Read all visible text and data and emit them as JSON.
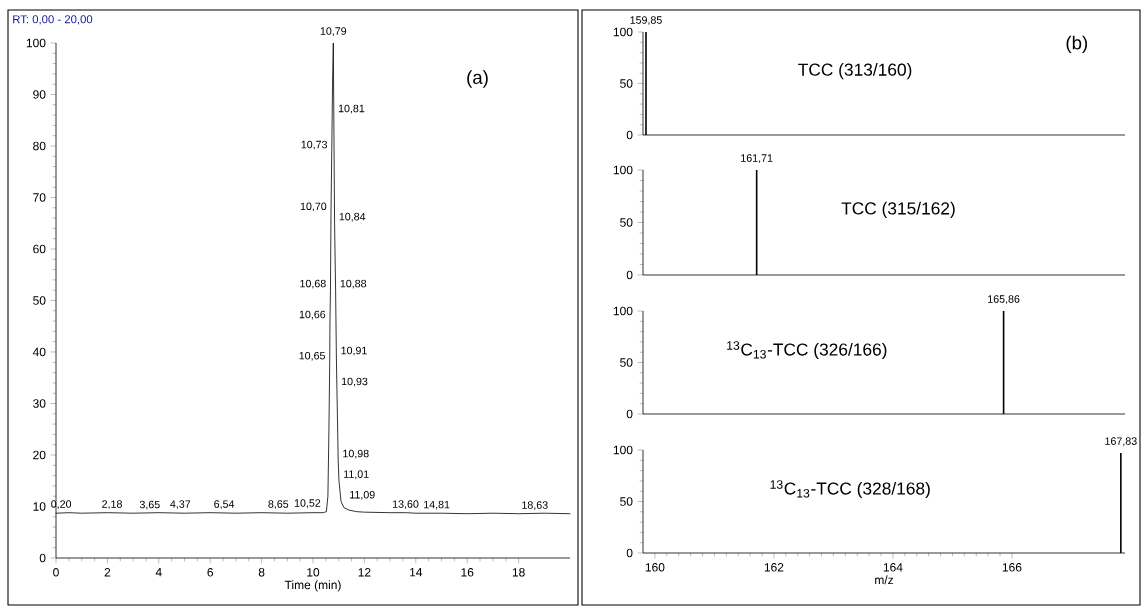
{
  "chart_data": [
    {
      "type": "line",
      "xlabel": "Time (min)",
      "xlim": [
        0,
        20
      ],
      "ylim": [
        0,
        100
      ],
      "xticks": [
        0,
        2,
        4,
        6,
        8,
        10,
        12,
        14,
        16,
        18
      ],
      "yticks": [
        0,
        10,
        20,
        30,
        40,
        50,
        60,
        70,
        80,
        90,
        100
      ],
      "series": [
        {
          "color": "#000000",
          "x": [
            0,
            0.5,
            1,
            2,
            3,
            4,
            5,
            6,
            7,
            8,
            9,
            10,
            10.4,
            10.52,
            10.58,
            10.62,
            10.65,
            10.66,
            10.68,
            10.7,
            10.73,
            10.76,
            10.79,
            10.81,
            10.84,
            10.88,
            10.91,
            10.93,
            10.98,
            11.01,
            11.09,
            11.2,
            11.4,
            11.7,
            12,
            13,
            13.6,
            14,
            15,
            16,
            17,
            18,
            19,
            20
          ],
          "values": [
            8.7,
            8.8,
            8.7,
            8.8,
            8.7,
            8.8,
            8.7,
            8.8,
            8.7,
            8.8,
            8.7,
            8.8,
            8.8,
            9.0,
            12,
            25,
            38,
            46,
            52,
            67,
            79,
            92,
            100,
            86,
            65,
            52,
            39,
            33,
            19,
            15,
            11,
            9.8,
            9.3,
            9.0,
            8.9,
            8.8,
            8.8,
            8.7,
            8.7,
            8.6,
            8.7,
            8.6,
            8.7,
            8.6
          ]
        }
      ],
      "annotations": [
        "RT: 0,00 - 20,00",
        "(a)",
        {
          "text": "0,20",
          "x": 0.2,
          "y": 8.8
        },
        {
          "text": "2,18",
          "x": 2.18,
          "y": 8.8
        },
        {
          "text": "3,65",
          "x": 3.65,
          "y": 8.7
        },
        {
          "text": "4,37",
          "x": 4.37,
          "y": 8.8
        },
        {
          "text": "6,54",
          "x": 6.54,
          "y": 8.8
        },
        {
          "text": "8,65",
          "x": 8.65,
          "y": 8.8
        },
        {
          "text": "10,52",
          "x": 10.52,
          "y": 9.0
        },
        {
          "text": "10,65",
          "x": 10.65,
          "y": 38
        },
        {
          "text": "10,66",
          "x": 10.66,
          "y": 46
        },
        {
          "text": "10,68",
          "x": 10.68,
          "y": 52
        },
        {
          "text": "10,70",
          "x": 10.7,
          "y": 67
        },
        {
          "text": "10,73",
          "x": 10.73,
          "y": 79
        },
        {
          "text": "10,79",
          "x": 10.79,
          "y": 100
        },
        {
          "text": "10,81",
          "x": 10.81,
          "y": 86
        },
        {
          "text": "10,84",
          "x": 10.84,
          "y": 65
        },
        {
          "text": "10,88",
          "x": 10.88,
          "y": 52
        },
        {
          "text": "10,91",
          "x": 10.91,
          "y": 39
        },
        {
          "text": "10,93",
          "x": 10.93,
          "y": 33
        },
        {
          "text": "10,98",
          "x": 10.98,
          "y": 19
        },
        {
          "text": "11,01",
          "x": 11.01,
          "y": 15
        },
        {
          "text": "11,09",
          "x": 11.09,
          "y": 11
        },
        {
          "text": "13,60",
          "x": 13.6,
          "y": 8.8
        },
        {
          "text": "14,81",
          "x": 14.81,
          "y": 8.7
        },
        {
          "text": "18,63",
          "x": 18.63,
          "y": 8.6
        }
      ]
    },
    {
      "type": "bar",
      "title": "TCC (313/160)",
      "xlim": [
        159.8,
        167.9
      ],
      "ylim": [
        0,
        100
      ],
      "yticks": [
        0,
        50,
        100
      ],
      "tick_labels": "y",
      "x": [
        159.85
      ],
      "values": [
        100
      ],
      "color": "#000000",
      "annotations": [
        "(b)",
        {
          "text": "159,85",
          "x": 159.85,
          "y": 100
        }
      ]
    },
    {
      "type": "bar",
      "title": "TCC (315/162)",
      "xlim": [
        159.8,
        167.9
      ],
      "ylim": [
        0,
        100
      ],
      "yticks": [
        0,
        50,
        100
      ],
      "tick_labels": "y",
      "x": [
        161.71
      ],
      "values": [
        100
      ],
      "color": "#000000",
      "annotations": [
        {
          "text": "161,71",
          "x": 161.71,
          "y": 100
        }
      ]
    },
    {
      "type": "bar",
      "title": "$^{13}$C$_{13}$-TCC (326/166)",
      "xlim": [
        159.8,
        167.9
      ],
      "ylim": [
        0,
        100
      ],
      "yticks": [
        0,
        50,
        100
      ],
      "tick_labels": "y",
      "x": [
        165.86
      ],
      "values": [
        100
      ],
      "color": "#000000",
      "annotations": [
        {
          "text": "165,86",
          "x": 165.86,
          "y": 100
        }
      ]
    },
    {
      "type": "bar",
      "title": "$^{13}$C$_{13}$-TCC (328/168)",
      "xlabel": "m/z",
      "xlim": [
        159.8,
        167.9
      ],
      "ylim": [
        0,
        100
      ],
      "xticks": [
        160,
        162,
        164,
        166
      ],
      "yticks": [
        0,
        50,
        100
      ],
      "x": [
        167.83
      ],
      "values": [
        97
      ],
      "color": "#000000",
      "annotations": [
        {
          "text": "167,83",
          "x": 167.83,
          "y": 97
        }
      ]
    }
  ]
}
